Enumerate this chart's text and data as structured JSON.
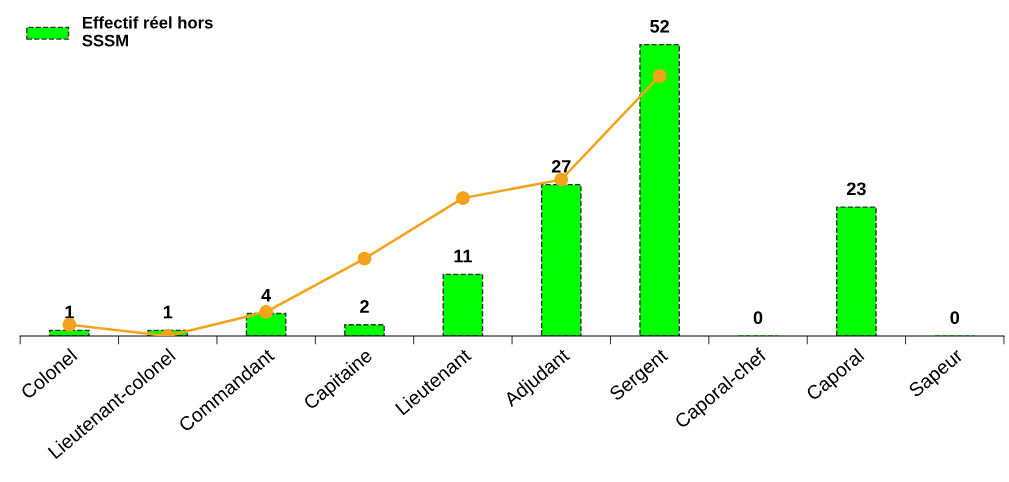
{
  "chart_data": {
    "type": "bar",
    "categories": [
      "Colonel",
      "Lieutenant-colonel",
      "Commandant",
      "Capitaine",
      "Lieutenant",
      "Adjudant",
      "Sergent",
      "Caporal-chef",
      "Caporal",
      "Sapeur"
    ],
    "series": [
      {
        "name": "Effectif réel hors\nSSSM",
        "color": "#00ff00",
        "values": [
          1,
          1,
          4,
          2,
          11,
          27,
          52,
          0,
          23,
          0
        ],
        "value_labels": [
          "1",
          "1",
          "4",
          "2",
          "11",
          "27",
          "52",
          "0",
          "23",
          "0"
        ]
      },
      {
        "type": "line",
        "color": "#f5a31c",
        "marker": "circle",
        "values": [
          2,
          0,
          4.3,
          13.8,
          24.6,
          27.9,
          46.4,
          null,
          null,
          null
        ]
      }
    ],
    "legend": "top left",
    "grid": false
  }
}
